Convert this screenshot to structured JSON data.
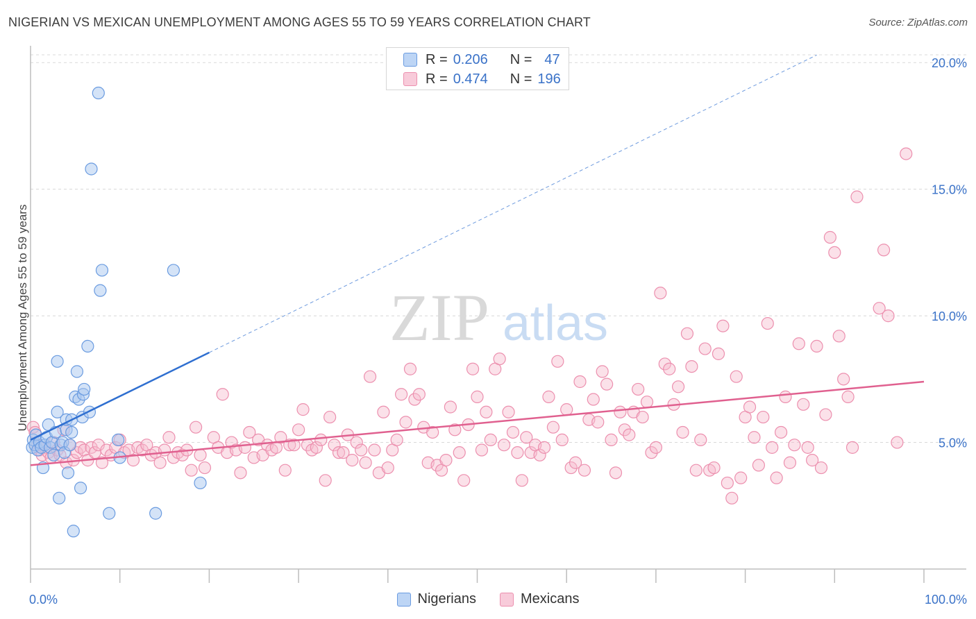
{
  "header": {
    "title": "NIGERIAN VS MEXICAN UNEMPLOYMENT AMONG AGES 55 TO 59 YEARS CORRELATION CHART",
    "source": "Source: ZipAtlas.com"
  },
  "watermark": {
    "zip": "ZIP",
    "atlas": "atlas"
  },
  "stats_legend": {
    "rows": [
      {
        "r_label": "R =",
        "r_value": "0.206",
        "n_label": "N =",
        "n_value": "47"
      },
      {
        "r_label": "R =",
        "r_value": "0.474",
        "n_label": "N =",
        "n_value": "196"
      }
    ]
  },
  "bottom_legend": {
    "nigerians": "Nigerians",
    "mexicans": "Mexicans"
  },
  "colors": {
    "nigerians_fill": "#a9c8f0",
    "nigerians_stroke": "#6a9be0",
    "nigerians_line": "#2f6fd0",
    "mexicans_fill": "#f6bccf",
    "mexicans_stroke": "#ec8fae",
    "mexicans_line": "#e0608f",
    "tick_label": "#3a72c8",
    "grid": "#d8d8d8"
  },
  "chart_data": {
    "type": "scatter",
    "title": "NIGERIAN VS MEXICAN UNEMPLOYMENT AMONG AGES 55 TO 59 YEARS CORRELATION CHART",
    "xlabel": "",
    "ylabel": "Unemployment Among Ages 55 to 59 years",
    "xlim": [
      0,
      100
    ],
    "ylim": [
      0,
      20.5
    ],
    "x_tick_labels": [
      "0.0%",
      "100.0%"
    ],
    "y_ticks": [
      5,
      10,
      15,
      20
    ],
    "y_tick_labels": [
      "5.0%",
      "10.0%",
      "15.0%",
      "20.0%"
    ],
    "grid": true,
    "series": [
      {
        "name": "Nigerians",
        "points": [
          [
            0.2,
            4.8
          ],
          [
            0.3,
            5.1
          ],
          [
            0.5,
            4.9
          ],
          [
            0.6,
            5.3
          ],
          [
            0.8,
            4.7
          ],
          [
            1.0,
            5.0
          ],
          [
            1.2,
            4.8
          ],
          [
            1.4,
            4.0
          ],
          [
            1.6,
            4.9
          ],
          [
            1.8,
            5.2
          ],
          [
            2.0,
            5.7
          ],
          [
            2.2,
            4.8
          ],
          [
            2.4,
            5.0
          ],
          [
            2.6,
            4.5
          ],
          [
            2.8,
            5.4
          ],
          [
            3.0,
            6.2
          ],
          [
            3.0,
            8.2
          ],
          [
            3.2,
            2.8
          ],
          [
            3.4,
            4.9
          ],
          [
            3.6,
            5.0
          ],
          [
            3.8,
            4.6
          ],
          [
            4.0,
            5.5
          ],
          [
            4.0,
            5.9
          ],
          [
            4.2,
            3.8
          ],
          [
            4.4,
            4.9
          ],
          [
            4.6,
            5.4
          ],
          [
            4.6,
            5.9
          ],
          [
            4.8,
            1.5
          ],
          [
            5.0,
            6.8
          ],
          [
            5.2,
            7.8
          ],
          [
            5.4,
            6.7
          ],
          [
            5.6,
            3.2
          ],
          [
            5.8,
            6.0
          ],
          [
            5.9,
            6.9
          ],
          [
            6.0,
            7.1
          ],
          [
            6.4,
            8.8
          ],
          [
            6.6,
            6.2
          ],
          [
            6.8,
            15.8
          ],
          [
            7.6,
            18.8
          ],
          [
            7.8,
            11.0
          ],
          [
            8.0,
            11.8
          ],
          [
            8.8,
            2.2
          ],
          [
            9.8,
            5.1
          ],
          [
            10.0,
            4.4
          ],
          [
            14.0,
            2.2
          ],
          [
            16.0,
            11.8
          ],
          [
            19.0,
            3.4
          ]
        ],
        "trend": {
          "x": [
            0,
            20,
            88
          ],
          "y": [
            5.1,
            8.55,
            20.3
          ],
          "solid_until_x": 20
        }
      },
      {
        "name": "Mexicans",
        "points": [
          [
            0.3,
            5.6
          ],
          [
            0.5,
            5.4
          ],
          [
            0.8,
            4.9
          ],
          [
            1.0,
            4.7
          ],
          [
            1.3,
            4.5
          ],
          [
            1.6,
            4.8
          ],
          [
            2.0,
            4.6
          ],
          [
            2.3,
            4.4
          ],
          [
            2.6,
            5.0
          ],
          [
            3.0,
            4.7
          ],
          [
            3.3,
            4.5
          ],
          [
            3.7,
            5.5
          ],
          [
            4.0,
            4.2
          ],
          [
            4.4,
            4.9
          ],
          [
            4.8,
            4.3
          ],
          [
            5.2,
            4.6
          ],
          [
            5.6,
            4.8
          ],
          [
            6.0,
            4.7
          ],
          [
            6.4,
            4.3
          ],
          [
            6.8,
            4.8
          ],
          [
            7.2,
            4.6
          ],
          [
            7.6,
            4.9
          ],
          [
            8.0,
            4.2
          ],
          [
            8.5,
            4.7
          ],
          [
            9.0,
            4.5
          ],
          [
            9.5,
            4.8
          ],
          [
            10.0,
            5.1
          ],
          [
            10.5,
            4.6
          ],
          [
            11.0,
            4.7
          ],
          [
            11.5,
            4.3
          ],
          [
            12.0,
            4.8
          ],
          [
            12.5,
            4.7
          ],
          [
            13.0,
            4.9
          ],
          [
            13.5,
            4.5
          ],
          [
            14.0,
            4.6
          ],
          [
            14.5,
            4.2
          ],
          [
            15.0,
            4.7
          ],
          [
            15.5,
            5.2
          ],
          [
            16.0,
            4.4
          ],
          [
            16.5,
            4.6
          ],
          [
            17.0,
            4.5
          ],
          [
            17.5,
            4.7
          ],
          [
            18.0,
            3.9
          ],
          [
            18.5,
            5.6
          ],
          [
            19.0,
            4.5
          ],
          [
            19.5,
            4.0
          ],
          [
            20.5,
            5.2
          ],
          [
            21.0,
            4.8
          ],
          [
            21.5,
            6.9
          ],
          [
            22.0,
            4.6
          ],
          [
            22.5,
            5.0
          ],
          [
            23.0,
            4.7
          ],
          [
            23.5,
            3.8
          ],
          [
            24.0,
            4.8
          ],
          [
            24.5,
            5.4
          ],
          [
            25.0,
            4.4
          ],
          [
            25.5,
            5.1
          ],
          [
            26.0,
            4.5
          ],
          [
            26.5,
            4.9
          ],
          [
            27.0,
            4.7
          ],
          [
            27.5,
            4.8
          ],
          [
            28.0,
            5.2
          ],
          [
            28.5,
            3.9
          ],
          [
            29.0,
            4.9
          ],
          [
            29.5,
            4.9
          ],
          [
            30.0,
            5.5
          ],
          [
            30.5,
            6.3
          ],
          [
            31.0,
            4.9
          ],
          [
            31.5,
            4.7
          ],
          [
            32.0,
            4.8
          ],
          [
            32.5,
            5.1
          ],
          [
            33.0,
            3.5
          ],
          [
            33.5,
            6.0
          ],
          [
            34.0,
            4.9
          ],
          [
            34.5,
            4.6
          ],
          [
            35.0,
            4.6
          ],
          [
            35.5,
            5.3
          ],
          [
            36.0,
            4.3
          ],
          [
            36.5,
            5.0
          ],
          [
            37.0,
            4.7
          ],
          [
            37.5,
            4.2
          ],
          [
            38.0,
            7.6
          ],
          [
            38.5,
            4.7
          ],
          [
            39.0,
            3.8
          ],
          [
            39.5,
            6.2
          ],
          [
            40.0,
            4.0
          ],
          [
            40.5,
            4.7
          ],
          [
            41.0,
            5.1
          ],
          [
            41.5,
            6.9
          ],
          [
            42.0,
            5.8
          ],
          [
            42.5,
            7.9
          ],
          [
            43.0,
            6.7
          ],
          [
            43.5,
            6.9
          ],
          [
            44.0,
            5.6
          ],
          [
            44.5,
            4.2
          ],
          [
            45.0,
            5.4
          ],
          [
            45.5,
            4.1
          ],
          [
            46.0,
            3.9
          ],
          [
            46.5,
            4.3
          ],
          [
            47.0,
            6.4
          ],
          [
            47.5,
            5.5
          ],
          [
            48.0,
            4.6
          ],
          [
            48.5,
            3.5
          ],
          [
            49.0,
            5.7
          ],
          [
            49.5,
            7.9
          ],
          [
            50.0,
            6.8
          ],
          [
            50.5,
            4.7
          ],
          [
            51.0,
            6.2
          ],
          [
            51.5,
            5.1
          ],
          [
            52.0,
            7.9
          ],
          [
            52.5,
            8.3
          ],
          [
            53.0,
            4.9
          ],
          [
            53.5,
            6.2
          ],
          [
            54.0,
            5.4
          ],
          [
            54.5,
            4.6
          ],
          [
            55.0,
            3.5
          ],
          [
            55.5,
            5.2
          ],
          [
            56.0,
            4.6
          ],
          [
            56.5,
            4.9
          ],
          [
            57.0,
            4.5
          ],
          [
            57.5,
            4.8
          ],
          [
            58.0,
            6.8
          ],
          [
            58.5,
            5.6
          ],
          [
            59.0,
            8.2
          ],
          [
            59.5,
            5.1
          ],
          [
            60.0,
            6.3
          ],
          [
            60.5,
            4.0
          ],
          [
            61.0,
            4.2
          ],
          [
            61.5,
            7.4
          ],
          [
            62.0,
            3.9
          ],
          [
            62.5,
            5.9
          ],
          [
            63.0,
            6.7
          ],
          [
            63.5,
            5.8
          ],
          [
            64.0,
            7.8
          ],
          [
            64.5,
            7.3
          ],
          [
            65.0,
            5.1
          ],
          [
            65.5,
            3.8
          ],
          [
            66.0,
            6.2
          ],
          [
            66.5,
            5.5
          ],
          [
            67.0,
            5.3
          ],
          [
            67.5,
            6.2
          ],
          [
            68.0,
            7.1
          ],
          [
            68.5,
            6.0
          ],
          [
            69.0,
            6.6
          ],
          [
            69.5,
            4.6
          ],
          [
            70.0,
            4.8
          ],
          [
            70.5,
            10.9
          ],
          [
            71.0,
            8.1
          ],
          [
            71.5,
            7.9
          ],
          [
            72.0,
            6.5
          ],
          [
            72.5,
            7.2
          ],
          [
            73.0,
            5.4
          ],
          [
            73.5,
            9.3
          ],
          [
            74.0,
            8.0
          ],
          [
            74.5,
            3.9
          ],
          [
            75.0,
            5.1
          ],
          [
            75.5,
            8.7
          ],
          [
            76.0,
            3.9
          ],
          [
            76.5,
            4.0
          ],
          [
            77.0,
            8.5
          ],
          [
            77.5,
            9.6
          ],
          [
            78.0,
            3.4
          ],
          [
            78.5,
            2.8
          ],
          [
            79.0,
            7.6
          ],
          [
            79.5,
            3.6
          ],
          [
            80.0,
            6.0
          ],
          [
            80.5,
            6.4
          ],
          [
            81.0,
            5.2
          ],
          [
            81.5,
            4.1
          ],
          [
            82.0,
            6.0
          ],
          [
            82.5,
            9.7
          ],
          [
            83.0,
            4.8
          ],
          [
            83.5,
            3.6
          ],
          [
            84.0,
            5.4
          ],
          [
            84.5,
            6.8
          ],
          [
            85.0,
            4.2
          ],
          [
            85.5,
            4.9
          ],
          [
            86.0,
            8.9
          ],
          [
            86.5,
            6.5
          ],
          [
            87.0,
            4.8
          ],
          [
            87.5,
            4.3
          ],
          [
            88.0,
            8.8
          ],
          [
            88.5,
            4.0
          ],
          [
            89.0,
            6.1
          ],
          [
            89.5,
            13.1
          ],
          [
            90.0,
            12.5
          ],
          [
            90.5,
            9.2
          ],
          [
            91.0,
            7.5
          ],
          [
            91.5,
            6.8
          ],
          [
            92.0,
            4.8
          ],
          [
            92.5,
            14.7
          ],
          [
            95.0,
            10.3
          ],
          [
            95.5,
            12.6
          ],
          [
            96.0,
            10.0
          ],
          [
            97.0,
            5.0
          ],
          [
            98.0,
            16.4
          ]
        ],
        "trend": {
          "x": [
            0,
            100
          ],
          "y": [
            4.1,
            7.4
          ]
        }
      }
    ]
  }
}
